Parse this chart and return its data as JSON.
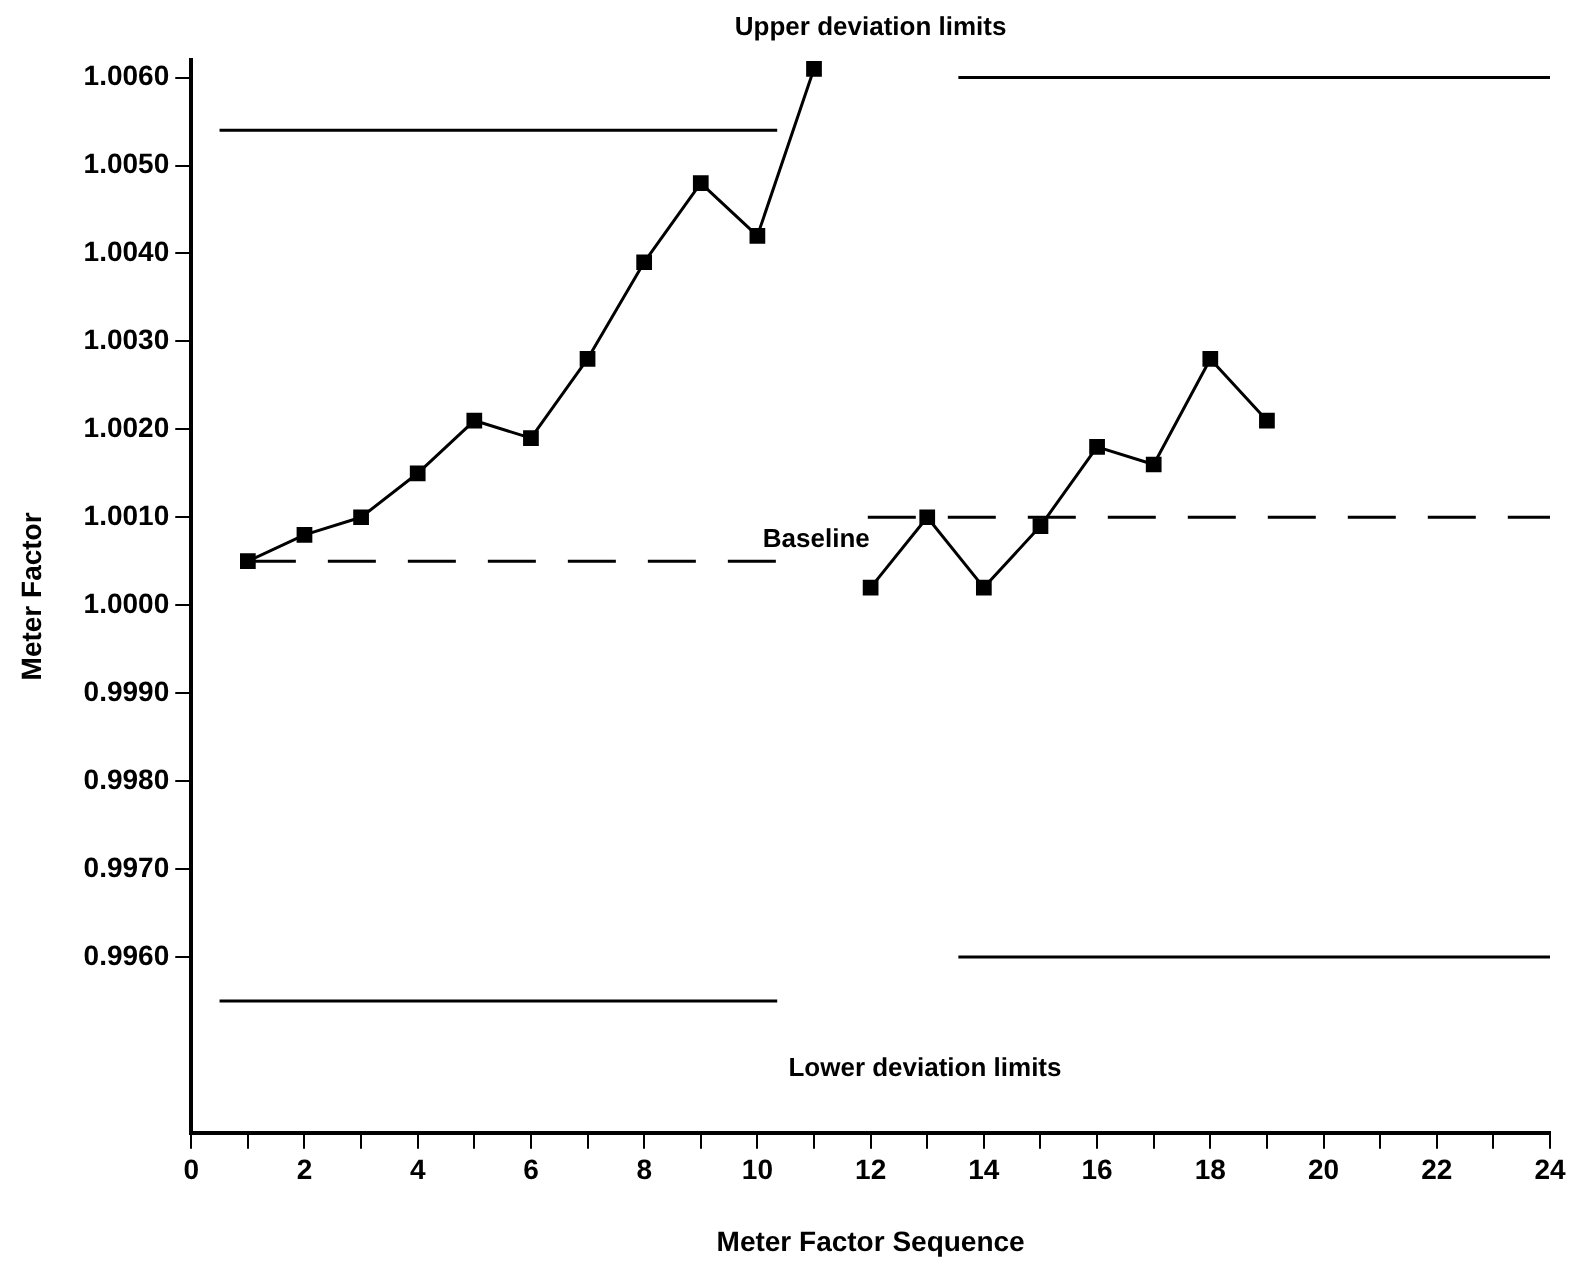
{
  "chart_data": {
    "type": "line",
    "xlabel": "Meter Factor Sequence",
    "ylabel": "Meter Factor",
    "xlim": [
      0,
      24
    ],
    "xticks": [
      0,
      {
        "value": 1,
        "label": null
      },
      2,
      {
        "value": 3,
        "label": null
      },
      4,
      {
        "value": 5,
        "label": null
      },
      6,
      {
        "value": 7,
        "label": null
      },
      8,
      {
        "value": 9,
        "label": null
      },
      10,
      {
        "value": 11,
        "label": null
      },
      12,
      {
        "value": 13,
        "label": null
      },
      14,
      {
        "value": 15,
        "label": null
      },
      16,
      {
        "value": 17,
        "label": null
      },
      18,
      {
        "value": 19,
        "label": null
      },
      20,
      {
        "value": 21,
        "label": null
      },
      22,
      {
        "value": 23,
        "label": null
      },
      24
    ],
    "ylim": [
      0.994,
      1.0062
    ],
    "yticks": [
      {
        "value": 0.996,
        "label": "0.9960"
      },
      {
        "value": 0.997,
        "label": "0.9970"
      },
      {
        "value": 0.998,
        "label": "0.9980"
      },
      {
        "value": 0.999,
        "label": "0.9990"
      },
      {
        "value": 1.0,
        "label": "1.0000"
      },
      {
        "value": 1.001,
        "label": "1.0010"
      },
      {
        "value": 1.002,
        "label": "1.0020"
      },
      {
        "value": 1.003,
        "label": "1.0030"
      },
      {
        "value": 1.004,
        "label": "1.0040"
      },
      {
        "value": 1.005,
        "label": "1.0050"
      },
      {
        "value": 1.006,
        "label": "1.0060"
      }
    ],
    "grid": false,
    "legend": false,
    "series": [
      {
        "color": "#000000",
        "marker": "square",
        "line_style": "solid",
        "x": [
          1,
          2,
          3,
          4,
          5,
          6,
          7,
          8,
          9,
          10,
          11
        ],
        "values": [
          1.0005,
          1.0008,
          1.001,
          1.0015,
          1.0021,
          1.0019,
          1.0028,
          1.0039,
          1.0048,
          1.0042,
          1.0061
        ]
      },
      {
        "color": "#000000",
        "marker": "square",
        "line_style": "solid",
        "x": [
          12,
          13,
          14,
          15,
          16,
          17,
          18,
          19
        ],
        "values": [
          1.0002,
          1.001,
          1.0002,
          1.0009,
          1.0018,
          1.0016,
          1.0028,
          1.0021
        ]
      },
      {
        "color": "#000000",
        "marker": "none",
        "line_style": "solid",
        "x": [
          0.5,
          10.35
        ],
        "values": [
          1.0054,
          1.0054
        ]
      },
      {
        "color": "#000000",
        "marker": "none",
        "line_style": "solid",
        "x": [
          13.55,
          24
        ],
        "values": [
          1.006,
          1.006
        ]
      },
      {
        "color": "#000000",
        "marker": "none",
        "line_style": "solid",
        "x": [
          0.5,
          10.35
        ],
        "values": [
          0.9955,
          0.9955
        ]
      },
      {
        "color": "#000000",
        "marker": "none",
        "line_style": "solid",
        "x": [
          13.55,
          24
        ],
        "values": [
          0.996,
          0.996
        ]
      },
      {
        "color": "#000000",
        "marker": "none",
        "line_style": "dashed",
        "x": [
          1,
          10.35
        ],
        "values": [
          1.0005,
          1.0005
        ]
      },
      {
        "color": "#000000",
        "marker": "none",
        "line_style": "dashed",
        "x": [
          11.95,
          24
        ],
        "values": [
          1.001,
          1.001
        ]
      }
    ],
    "annotations": [
      "Upper deviation limits",
      "Baseline",
      "Lower deviation limits"
    ]
  }
}
